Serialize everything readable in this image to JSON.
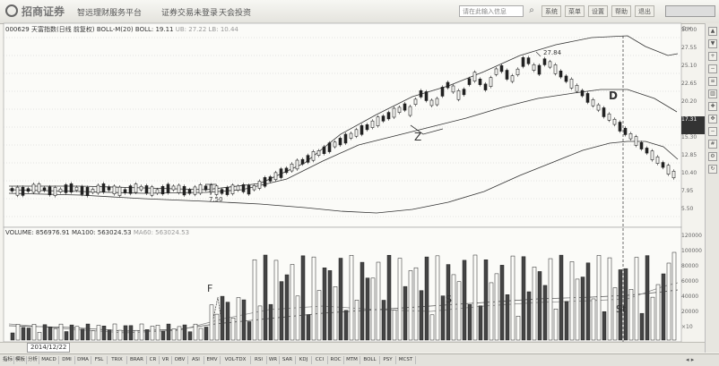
{
  "toolbar": {
    "brand": "招商证券",
    "nav": [
      "智远理财服务平台",
      "证券交易未登录",
      "天会投资"
    ],
    "search_placeholder": "请在此输入信息",
    "buttons": [
      "系统",
      "菜单",
      "设置",
      "帮助",
      "退出"
    ]
  },
  "price_panel": {
    "indicator": "000629 天富指数(日线 前复权) BOLL-M(20) BOLL: 19.11",
    "upper": "UB: 27.22",
    "lower": "LB: 10.44",
    "high_label": "27.84",
    "low_label": "7.50",
    "annotations": [
      "Z",
      "D"
    ],
    "axis": [
      "30.00",
      "27.55",
      "25.10",
      "22.65",
      "20.20",
      "17.31",
      "15.30",
      "12.85",
      "10.40",
      "7.95",
      "5.50"
    ],
    "current": "17.31"
  },
  "volume_panel": {
    "indicator": "VOLUME: 856976.91",
    "ma100": "MA100: 563024.53",
    "ma60": "MA60: 563024.53",
    "annotations": [
      "F",
      "S",
      "St"
    ],
    "axis": [
      "120000",
      "100000",
      "80000",
      "60000",
      "40000",
      "20000",
      "×10"
    ]
  },
  "datebar": {
    "date": "2014/12/22"
  },
  "tabs": [
    "指标",
    "模板",
    "分析",
    "MACD",
    "DMI",
    "DMA",
    "FSL",
    "TRIX",
    "BRAR",
    "CR",
    "VR",
    "OBV",
    "ASI",
    "EMV",
    "VOL-TDX",
    "RSI",
    "WR",
    "SAR",
    "KDJ",
    "CCI",
    "ROC",
    "MTM",
    "BOLL",
    "PSY",
    "MCST"
  ],
  "sidebar_icons": [
    "arrow-up-icon",
    "arrow-down-icon",
    "zoom-in-icon",
    "zoom-out-icon",
    "list-icon",
    "chart-icon",
    "plus-icon",
    "move-icon",
    "minus-icon",
    "grid-icon",
    "settings-icon",
    "refresh-icon"
  ]
}
